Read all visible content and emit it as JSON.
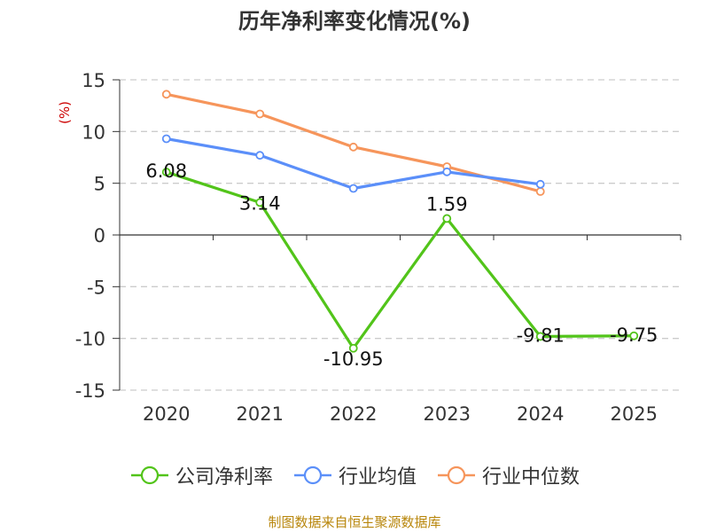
{
  "chart_data": {
    "type": "line",
    "title": "历年净利率变化情况(%)",
    "ylabel": "(%)",
    "xlabel": "",
    "categories": [
      "2020",
      "2021",
      "2022",
      "2023",
      "2024",
      "2025"
    ],
    "ylim": [
      -15,
      15
    ],
    "yticks": [
      15,
      10,
      5,
      0,
      -5,
      -10,
      -15
    ],
    "grid": true,
    "legend_position": "bottom",
    "series": [
      {
        "name": "公司净利率",
        "color": "#52c41a",
        "values": [
          6.08,
          3.14,
          -10.95,
          1.59,
          -9.81,
          -9.75
        ],
        "labels": [
          "6.08",
          "3.14",
          "-10.95",
          "1.59",
          "-9.81",
          "-9.75"
        ]
      },
      {
        "name": "行业均值",
        "color": "#5b8ff9",
        "values": [
          9.3,
          7.7,
          4.5,
          6.1,
          4.9,
          null
        ]
      },
      {
        "name": "行业中位数",
        "color": "#f6955b",
        "values": [
          13.6,
          11.7,
          8.5,
          6.6,
          4.2,
          null
        ]
      }
    ]
  },
  "footer": "制图数据来自恒生聚源数据库"
}
